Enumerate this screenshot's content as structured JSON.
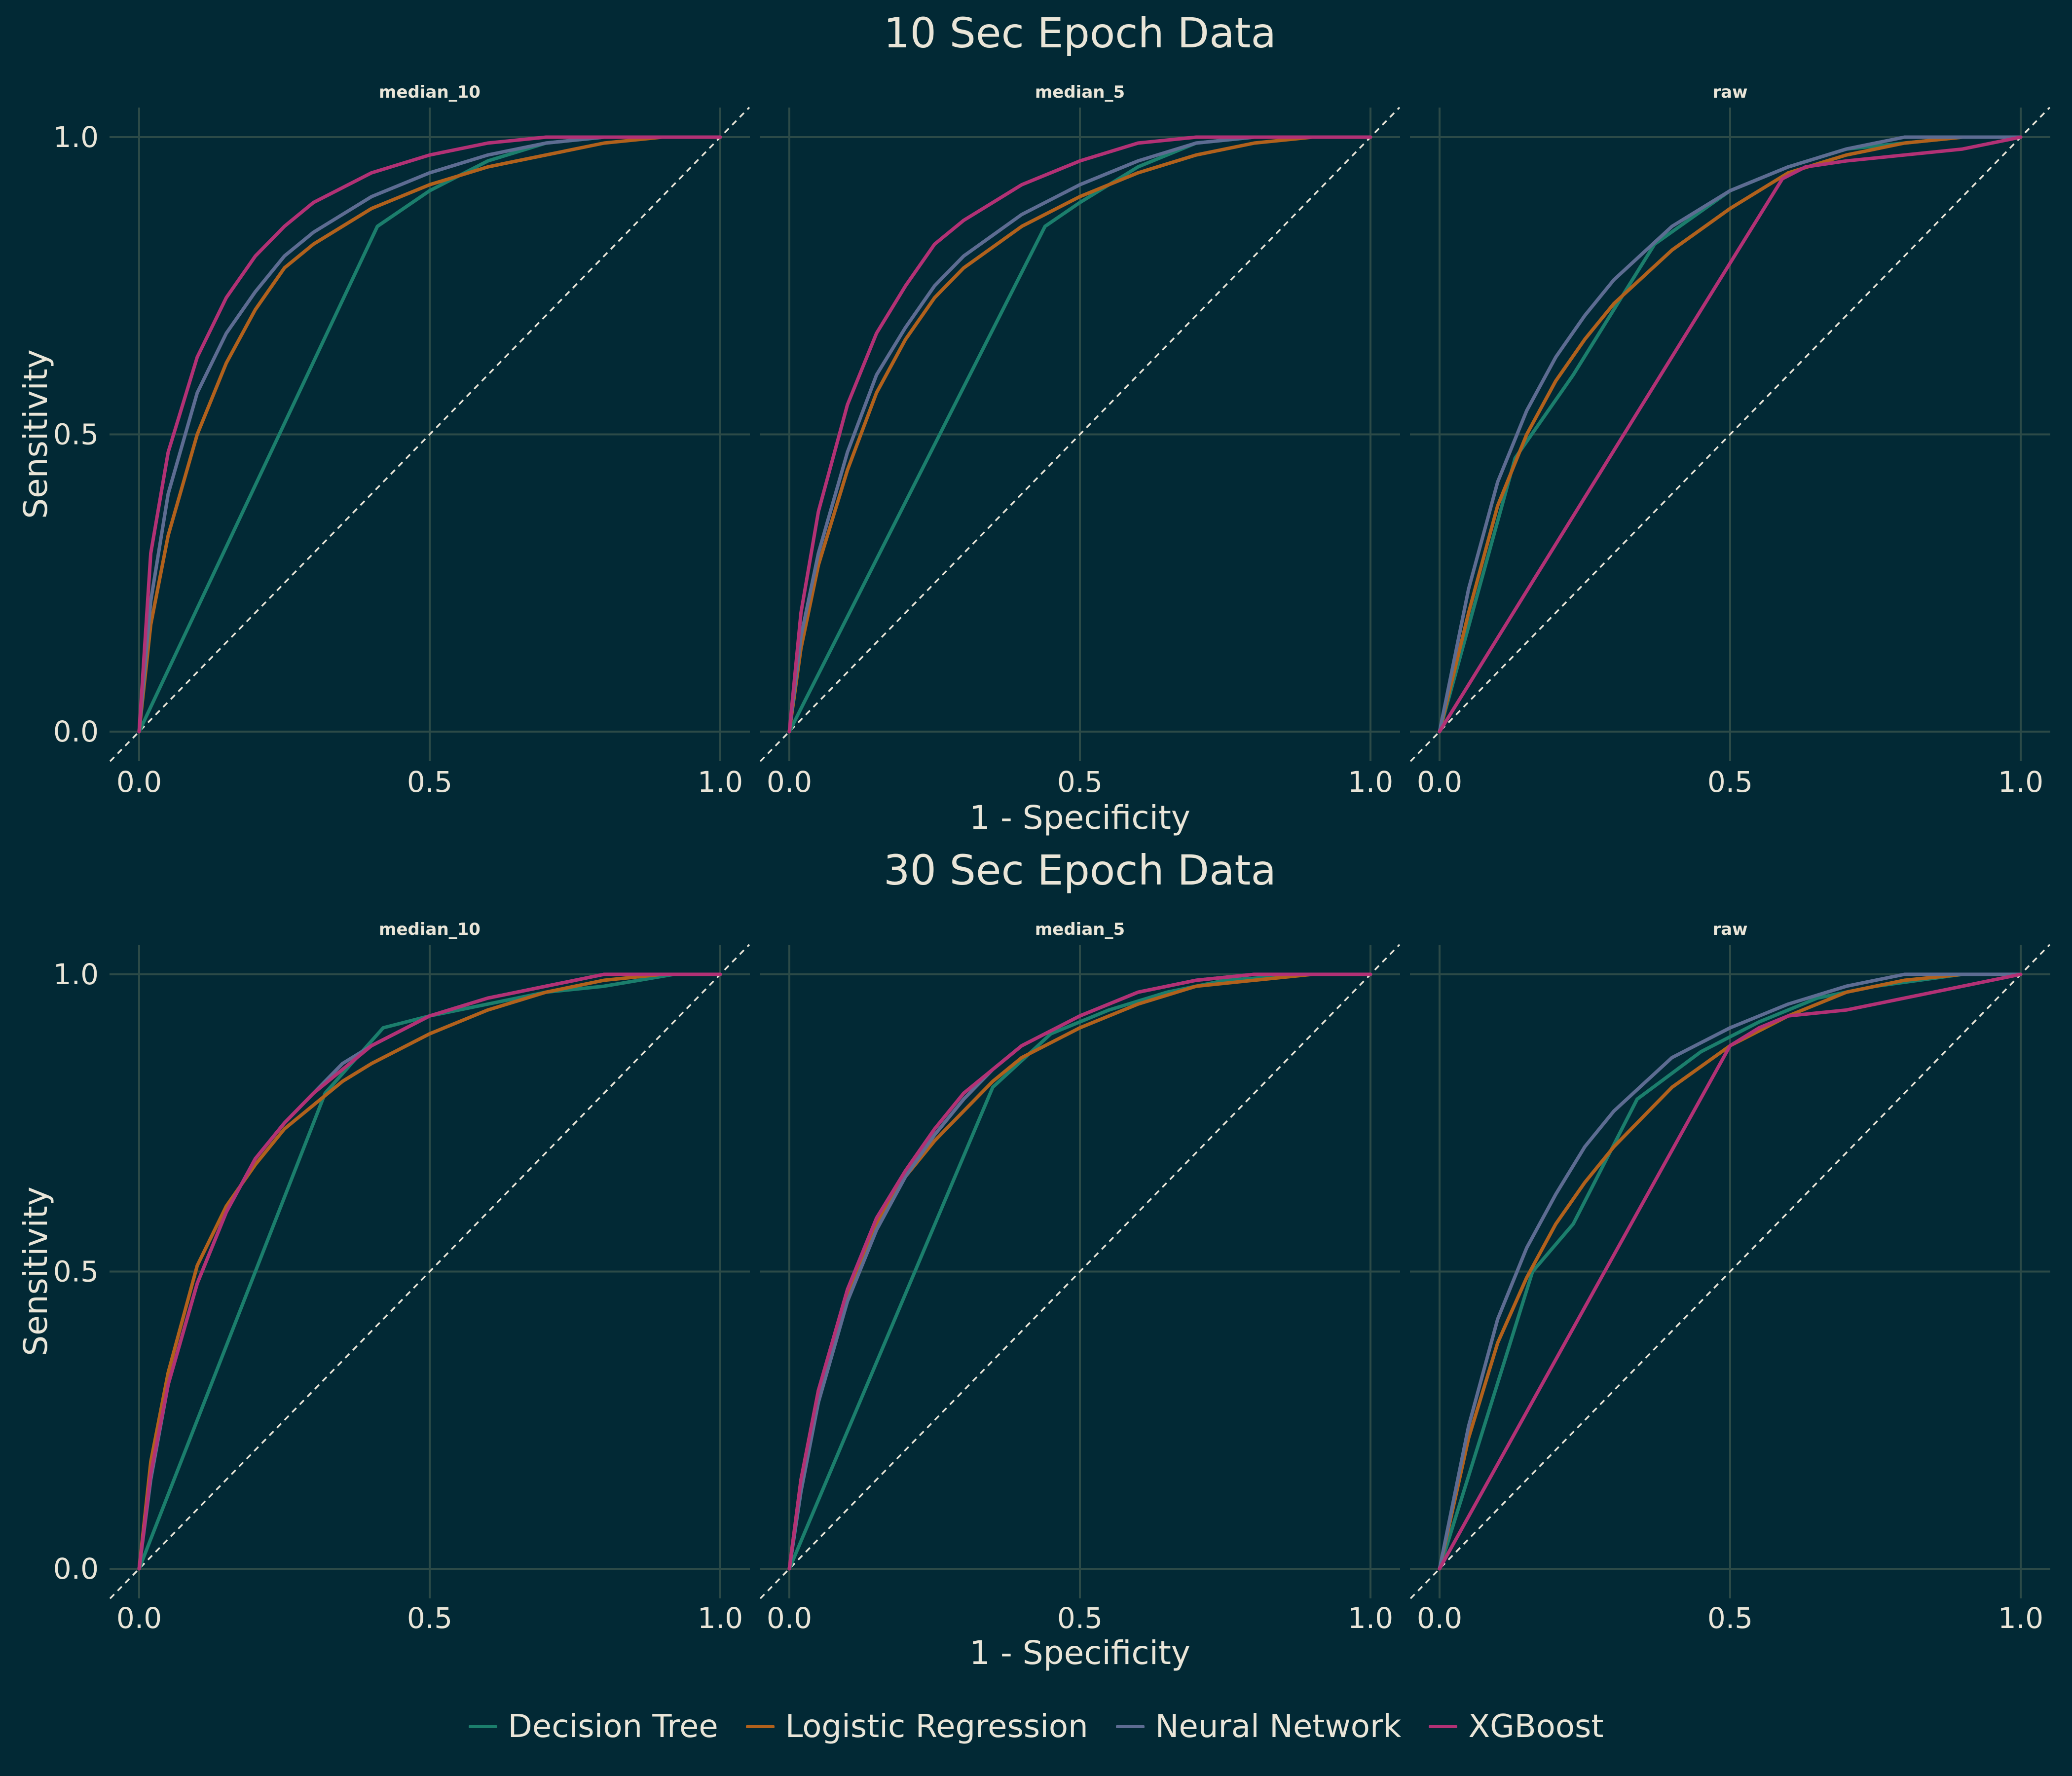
{
  "colors": {
    "background": "#022935",
    "text": "#e9e5d8",
    "grid": "#2c4a47",
    "reference": "#e9e5d8"
  },
  "legend": {
    "items": [
      {
        "name": "Decision Tree",
        "color": "#1b7e6c"
      },
      {
        "name": "Logistic Regression",
        "color": "#b1611c"
      },
      {
        "name": "Neural Network",
        "color": "#5d6c92"
      },
      {
        "name": "XGBoost",
        "color": "#b23175"
      }
    ]
  },
  "chart_data": [
    {
      "type": "line",
      "title": "10 Sec Epoch Data",
      "xlabel": "1 - Specificity",
      "ylabel": "Sensitivity",
      "xlim": [
        0,
        1
      ],
      "ylim": [
        0,
        1
      ],
      "xticks": [
        "0.0",
        "0.5",
        "1.0"
      ],
      "yticks": [
        "0.0",
        "0.5",
        "1.0"
      ],
      "grid": true,
      "reference_line": "diagonal, dashed",
      "legend_position": "bottom",
      "panels": [
        {
          "title": "median_10",
          "series": [
            {
              "name": "Decision Tree",
              "x": [
                0,
                0.41,
                0.5,
                0.6,
                0.7,
                0.8,
                0.9,
                1.0
              ],
              "y": [
                0,
                0.85,
                0.91,
                0.96,
                0.99,
                1.0,
                1.0,
                1.0
              ]
            },
            {
              "name": "Logistic Regression",
              "x": [
                0,
                0.02,
                0.05,
                0.1,
                0.15,
                0.2,
                0.25,
                0.3,
                0.4,
                0.5,
                0.6,
                0.7,
                0.8,
                0.9,
                1.0
              ],
              "y": [
                0,
                0.18,
                0.33,
                0.5,
                0.62,
                0.71,
                0.78,
                0.82,
                0.88,
                0.92,
                0.95,
                0.97,
                0.99,
                1.0,
                1.0
              ]
            },
            {
              "name": "Neural Network",
              "x": [
                0,
                0.02,
                0.05,
                0.1,
                0.15,
                0.2,
                0.25,
                0.3,
                0.4,
                0.5,
                0.6,
                0.7,
                0.8,
                0.9,
                1.0
              ],
              "y": [
                0,
                0.22,
                0.4,
                0.57,
                0.67,
                0.74,
                0.8,
                0.84,
                0.9,
                0.94,
                0.97,
                0.99,
                1.0,
                1.0,
                1.0
              ]
            },
            {
              "name": "XGBoost",
              "x": [
                0,
                0.02,
                0.05,
                0.1,
                0.15,
                0.2,
                0.25,
                0.3,
                0.4,
                0.5,
                0.6,
                0.7,
                0.8,
                0.9,
                1.0
              ],
              "y": [
                0,
                0.3,
                0.47,
                0.63,
                0.73,
                0.8,
                0.85,
                0.89,
                0.94,
                0.97,
                0.99,
                1.0,
                1.0,
                1.0,
                1.0
              ]
            }
          ]
        },
        {
          "title": "median_5",
          "series": [
            {
              "name": "Decision Tree",
              "x": [
                0,
                0.44,
                0.5,
                0.6,
                0.7,
                0.8,
                0.9,
                1.0
              ],
              "y": [
                0,
                0.85,
                0.89,
                0.95,
                0.99,
                1.0,
                1.0,
                1.0
              ]
            },
            {
              "name": "Logistic Regression",
              "x": [
                0,
                0.02,
                0.05,
                0.1,
                0.15,
                0.2,
                0.25,
                0.3,
                0.4,
                0.5,
                0.6,
                0.7,
                0.8,
                0.9,
                1.0
              ],
              "y": [
                0,
                0.14,
                0.28,
                0.44,
                0.57,
                0.66,
                0.73,
                0.78,
                0.85,
                0.9,
                0.94,
                0.97,
                0.99,
                1.0,
                1.0
              ]
            },
            {
              "name": "Neural Network",
              "x": [
                0,
                0.02,
                0.05,
                0.1,
                0.15,
                0.2,
                0.25,
                0.3,
                0.4,
                0.5,
                0.6,
                0.7,
                0.8,
                0.9,
                1.0
              ],
              "y": [
                0,
                0.16,
                0.3,
                0.47,
                0.6,
                0.68,
                0.75,
                0.8,
                0.87,
                0.92,
                0.96,
                0.99,
                1.0,
                1.0,
                1.0
              ]
            },
            {
              "name": "XGBoost",
              "x": [
                0,
                0.02,
                0.05,
                0.1,
                0.15,
                0.2,
                0.25,
                0.3,
                0.4,
                0.5,
                0.6,
                0.7,
                0.8,
                0.9,
                1.0
              ],
              "y": [
                0,
                0.2,
                0.37,
                0.55,
                0.67,
                0.75,
                0.82,
                0.86,
                0.92,
                0.96,
                0.99,
                1.0,
                1.0,
                1.0,
                1.0
              ]
            }
          ]
        },
        {
          "title": "raw",
          "series": [
            {
              "name": "Decision Tree",
              "x": [
                0,
                0.13,
                0.23,
                0.37,
                0.5,
                0.6,
                0.7,
                0.8,
                0.9,
                1.0
              ],
              "y": [
                0,
                0.46,
                0.6,
                0.82,
                0.91,
                0.95,
                0.98,
                0.99,
                1.0,
                1.0
              ]
            },
            {
              "name": "Logistic Regression",
              "x": [
                0,
                0.05,
                0.1,
                0.15,
                0.2,
                0.25,
                0.3,
                0.4,
                0.5,
                0.6,
                0.7,
                0.8,
                0.9,
                1.0
              ],
              "y": [
                0,
                0.2,
                0.38,
                0.5,
                0.59,
                0.66,
                0.72,
                0.81,
                0.88,
                0.94,
                0.97,
                0.99,
                1.0,
                1.0
              ]
            },
            {
              "name": "Neural Network",
              "x": [
                0,
                0.05,
                0.1,
                0.15,
                0.2,
                0.25,
                0.3,
                0.4,
                0.5,
                0.6,
                0.7,
                0.8,
                0.9,
                1.0
              ],
              "y": [
                0,
                0.24,
                0.42,
                0.54,
                0.63,
                0.7,
                0.76,
                0.85,
                0.91,
                0.95,
                0.98,
                1.0,
                1.0,
                1.0
              ]
            },
            {
              "name": "XGBoost",
              "x": [
                0,
                0.59,
                0.63,
                0.7,
                0.8,
                0.9,
                1.0
              ],
              "y": [
                0,
                0.93,
                0.95,
                0.96,
                0.97,
                0.98,
                1.0
              ]
            }
          ]
        }
      ]
    },
    {
      "type": "line",
      "title": "30 Sec Epoch Data",
      "xlabel": "1 - Specificity",
      "ylabel": "Sensitivity",
      "xlim": [
        0,
        1
      ],
      "ylim": [
        0,
        1
      ],
      "xticks": [
        "0.0",
        "0.5",
        "1.0"
      ],
      "yticks": [
        "0.0",
        "0.5",
        "1.0"
      ],
      "grid": true,
      "reference_line": "diagonal, dashed",
      "legend_position": "bottom",
      "panels": [
        {
          "title": "median_10",
          "series": [
            {
              "name": "Decision Tree",
              "x": [
                0,
                0.32,
                0.42,
                0.5,
                0.6,
                0.7,
                0.8,
                0.92,
                1.0
              ],
              "y": [
                0,
                0.8,
                0.91,
                0.93,
                0.95,
                0.97,
                0.98,
                1.0,
                1.0
              ]
            },
            {
              "name": "Logistic Regression",
              "x": [
                0,
                0.02,
                0.05,
                0.1,
                0.15,
                0.2,
                0.25,
                0.3,
                0.35,
                0.4,
                0.5,
                0.6,
                0.7,
                0.8,
                0.9,
                1.0
              ],
              "y": [
                0,
                0.18,
                0.33,
                0.51,
                0.61,
                0.68,
                0.74,
                0.78,
                0.82,
                0.85,
                0.9,
                0.94,
                0.97,
                0.99,
                1.0,
                1.0
              ]
            },
            {
              "name": "Neural Network",
              "x": [
                0,
                0.02,
                0.05,
                0.1,
                0.15,
                0.2,
                0.25,
                0.3,
                0.35,
                0.4,
                0.5,
                0.6,
                0.7,
                0.8,
                0.9,
                1.0
              ],
              "y": [
                0,
                0.15,
                0.31,
                0.48,
                0.6,
                0.69,
                0.75,
                0.8,
                0.85,
                0.88,
                0.93,
                0.96,
                0.98,
                1.0,
                1.0,
                1.0
              ]
            },
            {
              "name": "XGBoost",
              "x": [
                0,
                0.02,
                0.05,
                0.1,
                0.15,
                0.2,
                0.25,
                0.3,
                0.35,
                0.4,
                0.5,
                0.6,
                0.7,
                0.8,
                0.9,
                1.0
              ],
              "y": [
                0,
                0.16,
                0.31,
                0.48,
                0.6,
                0.69,
                0.75,
                0.8,
                0.84,
                0.88,
                0.93,
                0.96,
                0.98,
                1.0,
                1.0,
                1.0
              ]
            }
          ]
        },
        {
          "title": "median_5",
          "series": [
            {
              "name": "Decision Tree",
              "x": [
                0,
                0.35,
                0.45,
                0.55,
                0.65,
                0.75,
                0.9,
                1.0
              ],
              "y": [
                0,
                0.81,
                0.9,
                0.94,
                0.97,
                0.99,
                1.0,
                1.0
              ]
            },
            {
              "name": "Logistic Regression",
              "x": [
                0,
                0.02,
                0.05,
                0.1,
                0.15,
                0.2,
                0.25,
                0.3,
                0.35,
                0.4,
                0.5,
                0.6,
                0.7,
                0.8,
                0.9,
                1.0
              ],
              "y": [
                0,
                0.15,
                0.3,
                0.46,
                0.58,
                0.66,
                0.72,
                0.77,
                0.82,
                0.86,
                0.91,
                0.95,
                0.98,
                0.99,
                1.0,
                1.0
              ]
            },
            {
              "name": "Neural Network",
              "x": [
                0,
                0.02,
                0.05,
                0.1,
                0.15,
                0.2,
                0.25,
                0.3,
                0.35,
                0.4,
                0.5,
                0.6,
                0.7,
                0.8,
                0.9,
                1.0
              ],
              "y": [
                0,
                0.13,
                0.28,
                0.45,
                0.57,
                0.66,
                0.73,
                0.79,
                0.84,
                0.88,
                0.93,
                0.97,
                0.99,
                1.0,
                1.0,
                1.0
              ]
            },
            {
              "name": "XGBoost",
              "x": [
                0,
                0.02,
                0.05,
                0.1,
                0.15,
                0.2,
                0.25,
                0.3,
                0.35,
                0.4,
                0.5,
                0.6,
                0.7,
                0.8,
                0.9,
                1.0
              ],
              "y": [
                0,
                0.15,
                0.3,
                0.47,
                0.59,
                0.67,
                0.74,
                0.8,
                0.84,
                0.88,
                0.93,
                0.97,
                0.99,
                1.0,
                1.0,
                1.0
              ]
            }
          ]
        },
        {
          "title": "raw",
          "series": [
            {
              "name": "Decision Tree",
              "x": [
                0,
                0.16,
                0.23,
                0.34,
                0.45,
                0.55,
                0.65,
                0.75,
                0.9,
                1.0
              ],
              "y": [
                0,
                0.5,
                0.58,
                0.79,
                0.87,
                0.92,
                0.96,
                0.98,
                1.0,
                1.0
              ]
            },
            {
              "name": "Logistic Regression",
              "x": [
                0,
                0.05,
                0.1,
                0.15,
                0.2,
                0.25,
                0.3,
                0.4,
                0.5,
                0.6,
                0.7,
                0.8,
                0.9,
                1.0
              ],
              "y": [
                0,
                0.22,
                0.38,
                0.49,
                0.58,
                0.65,
                0.71,
                0.81,
                0.88,
                0.93,
                0.97,
                0.99,
                1.0,
                1.0
              ]
            },
            {
              "name": "Neural Network",
              "x": [
                0,
                0.05,
                0.1,
                0.15,
                0.2,
                0.25,
                0.3,
                0.4,
                0.5,
                0.6,
                0.7,
                0.8,
                0.9,
                1.0
              ],
              "y": [
                0,
                0.24,
                0.42,
                0.54,
                0.63,
                0.71,
                0.77,
                0.86,
                0.91,
                0.95,
                0.98,
                1.0,
                1.0,
                1.0
              ]
            },
            {
              "name": "XGBoost",
              "x": [
                0,
                0.5,
                0.55,
                0.6,
                0.7,
                0.8,
                0.9,
                1.0
              ],
              "y": [
                0,
                0.88,
                0.91,
                0.93,
                0.94,
                0.96,
                0.98,
                1.0
              ]
            }
          ]
        }
      ]
    }
  ]
}
